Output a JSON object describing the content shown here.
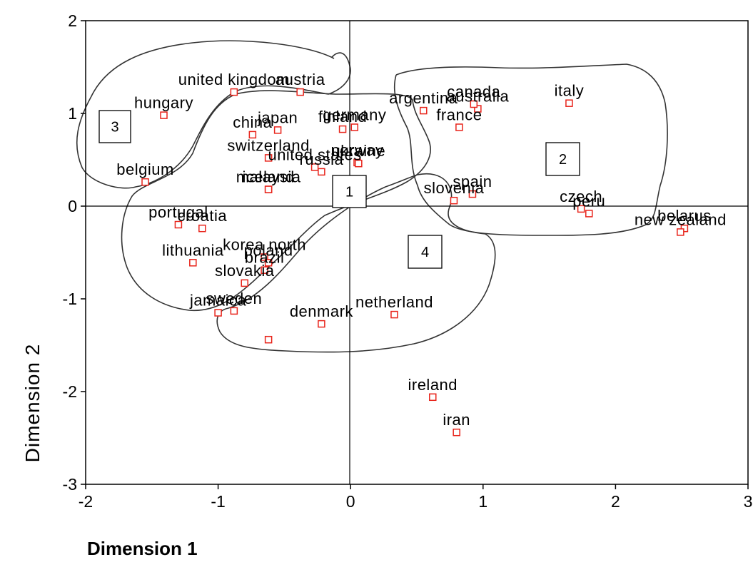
{
  "chart_data": {
    "type": "scatter",
    "xlabel": "Dimension 1",
    "ylabel": "Dimension 2",
    "xlim": [
      -2,
      3
    ],
    "ylim": [
      -3,
      2
    ],
    "xticks": [
      -2,
      -1,
      0,
      1,
      2,
      3
    ],
    "yticks": [
      2,
      1,
      0,
      -1,
      -2,
      -3
    ],
    "reference_lines": {
      "x": 0,
      "y": 0
    },
    "marker_color": "#e8231a",
    "points": [
      {
        "label": "united kingdom",
        "x": -0.88,
        "y": 1.23
      },
      {
        "label": "austria",
        "x": -0.38,
        "y": 1.23
      },
      {
        "label": "hungary",
        "x": -1.41,
        "y": 0.98
      },
      {
        "label": "china",
        "x": -0.74,
        "y": 0.77
      },
      {
        "label": "japan",
        "x": -0.55,
        "y": 0.82
      },
      {
        "label": "switzerland",
        "x": -0.62,
        "y": 0.52
      },
      {
        "label": "finland",
        "x": -0.06,
        "y": 0.83
      },
      {
        "label": "germany",
        "x": 0.03,
        "y": 0.85
      },
      {
        "label": "norway",
        "x": 0.05,
        "y": 0.47
      },
      {
        "label": "russia",
        "x": -0.22,
        "y": 0.37
      },
      {
        "label": "united states",
        "x": -0.27,
        "y": 0.42
      },
      {
        "label": "ukraine",
        "x": 0.06,
        "y": 0.46
      },
      {
        "label": "malaysia",
        "x": -0.62,
        "y": 0.18
      },
      {
        "label": "belgium",
        "x": -1.55,
        "y": 0.26
      },
      {
        "label": "iceland",
        "x": -0.62,
        "y": 0.18
      },
      {
        "label": "portugal",
        "x": -1.3,
        "y": -0.2
      },
      {
        "label": "croatia",
        "x": -1.12,
        "y": -0.24
      },
      {
        "label": "korea north",
        "x": -0.65,
        "y": -0.55
      },
      {
        "label": "lithuania",
        "x": -1.19,
        "y": -0.61
      },
      {
        "label": "poland",
        "x": -0.62,
        "y": -0.61
      },
      {
        "label": "brazil",
        "x": -0.65,
        "y": -0.69
      },
      {
        "label": "slovakia",
        "x": -0.8,
        "y": -0.83
      },
      {
        "label": "jamaica",
        "x": -1.0,
        "y": -1.15
      },
      {
        "label": "sweden",
        "x": -0.88,
        "y": -1.13
      },
      {
        "label": "denmark",
        "x": -0.22,
        "y": -1.27
      },
      {
        "label": "netherland",
        "x": 0.33,
        "y": -1.17
      },
      {
        "label": "argentina",
        "x": 0.55,
        "y": 1.03
      },
      {
        "label": "australia",
        "x": 0.96,
        "y": 1.05
      },
      {
        "label": "canada",
        "x": 0.93,
        "y": 1.1
      },
      {
        "label": "france",
        "x": 0.82,
        "y": 0.85
      },
      {
        "label": "italy",
        "x": 1.65,
        "y": 1.11
      },
      {
        "label": "spain",
        "x": 0.92,
        "y": 0.13
      },
      {
        "label": "slovenia",
        "x": 0.78,
        "y": 0.06
      },
      {
        "label": "czech",
        "x": 1.74,
        "y": -0.03
      },
      {
        "label": "peru",
        "x": 1.8,
        "y": -0.08
      },
      {
        "label": "belarus",
        "x": 2.52,
        "y": -0.24
      },
      {
        "label": "new zealand",
        "x": 2.49,
        "y": -0.28
      },
      {
        "label": "ireland",
        "x": 0.62,
        "y": -2.06
      },
      {
        "label": "iran",
        "x": 0.8,
        "y": -2.44
      },
      {
        "label": "",
        "x": -0.62,
        "y": -1.44
      }
    ],
    "cluster_labels": [
      "1",
      "2",
      "3",
      "4"
    ]
  }
}
